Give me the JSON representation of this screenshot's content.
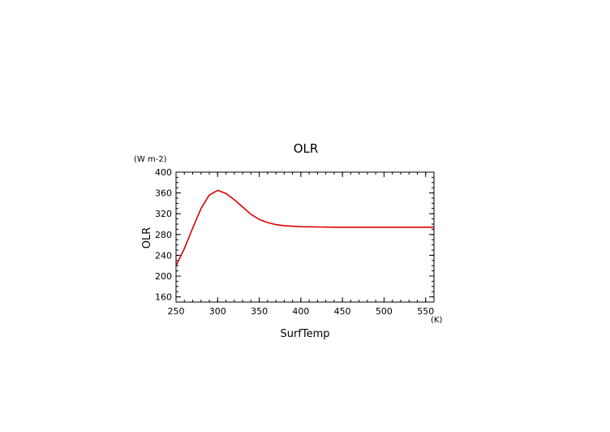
{
  "chart_data": {
    "type": "line",
    "title": "OLR",
    "xlabel": "SurfTemp",
    "ylabel": "OLR",
    "x_unit": "(K)",
    "y_unit": "(W m-2)",
    "xlim": [
      250,
      560
    ],
    "ylim": [
      150,
      400
    ],
    "x_ticks": [
      250,
      300,
      350,
      400,
      450,
      500,
      550
    ],
    "y_ticks": [
      160,
      200,
      240,
      280,
      320,
      360,
      400
    ],
    "x_minor_step": 10,
    "y_minor_step": 10,
    "grid": false,
    "line_color": "#dd0000",
    "series": [
      {
        "x": [
          250,
          260,
          270,
          280,
          290,
          300,
          310,
          320,
          330,
          340,
          350,
          360,
          370,
          380,
          390,
          400,
          420,
          440,
          460,
          480,
          500,
          520,
          540,
          560
        ],
        "y": [
          220,
          253,
          292,
          330,
          356,
          365,
          359,
          347,
          333,
          319,
          309,
          303,
          299,
          297,
          296,
          295,
          294.5,
          294,
          294,
          294,
          294,
          294,
          294,
          294
        ]
      }
    ]
  }
}
